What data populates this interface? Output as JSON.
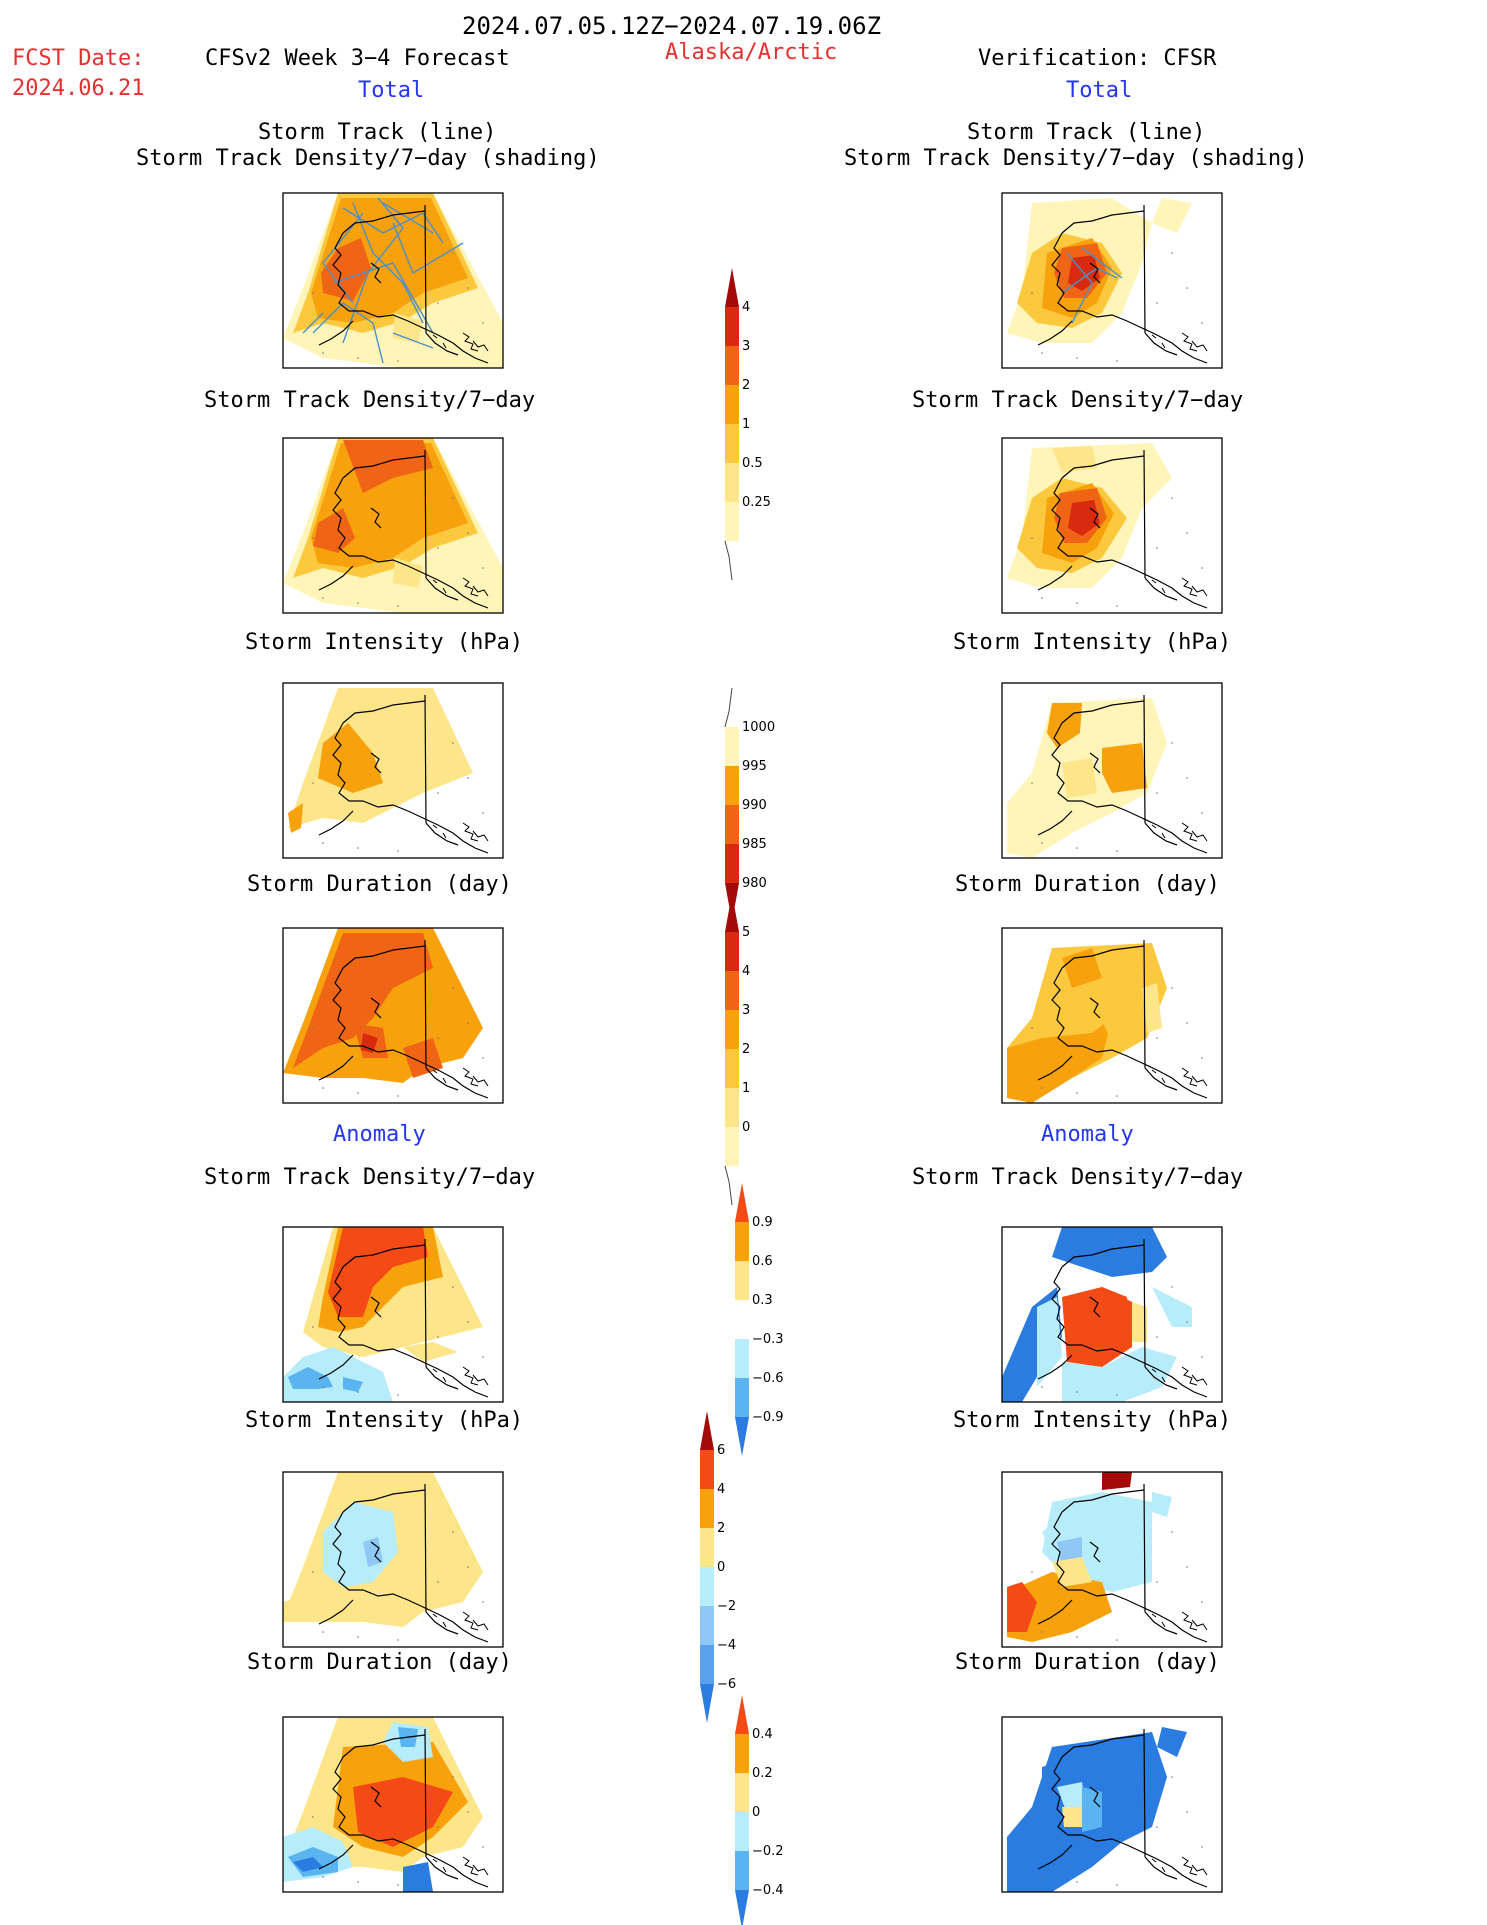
{
  "header": {
    "period": "2024.07.05.12Z−2024.07.19.06Z",
    "fcst_label": "FCST Date:",
    "fcst_date": "2024.06.21",
    "forecast_title": "CFSv2 Week 3−4 Forecast",
    "region": "Alaska/Arctic",
    "verification": "Verification: CFSR"
  },
  "sections": {
    "total": "Total",
    "anomaly": "Anomaly"
  },
  "panel_titles": {
    "track_line": "Storm Track (line)",
    "track_shading": "Storm Track Density/7−day (shading)",
    "density": "Storm Track Density/7−day",
    "intensity": "Storm Intensity (hPa)",
    "duration": "Storm Duration (day)"
  },
  "colorbars": {
    "density": {
      "labels": [
        "4",
        "3",
        "2",
        "1",
        "0.5",
        "0.25"
      ],
      "colors": [
        "#a50a0a",
        "#d92a10",
        "#f06515",
        "#f7a20d",
        "#fbc83e",
        "#fde68a",
        "#fff5b8"
      ]
    },
    "intensity": {
      "labels": [
        "1000",
        "995",
        "990",
        "985",
        "980"
      ],
      "colors": [
        "#fff5b8",
        "#f7a20d",
        "#f06515",
        "#d92a10",
        "#a50a0a"
      ]
    },
    "duration": {
      "labels": [
        "5",
        "4",
        "3",
        "2",
        "1",
        "0"
      ],
      "colors": [
        "#a50a0a",
        "#d92a10",
        "#f06515",
        "#f7a20d",
        "#fbc83e",
        "#fde68a",
        "#fff5b8"
      ]
    },
    "density_anom": {
      "labels": [
        "0.9",
        "0.6",
        "0.3",
        "−0.3",
        "−0.6",
        "−0.9"
      ],
      "colors": [
        "#f44a16",
        "#f7a20d",
        "#fde68a",
        "#ffffff",
        "#b7ecfa",
        "#5ab4f0",
        "#2a7ce0"
      ]
    },
    "intensity_anom": {
      "labels": [
        "6",
        "4",
        "2",
        "0",
        "−2",
        "−4",
        "−6"
      ],
      "colors": [
        "#a50a0a",
        "#f44a16",
        "#f7a20d",
        "#fde68a",
        "#b7ecfa",
        "#8fc8f5",
        "#5aa2ee",
        "#2a7ce0"
      ]
    },
    "duration_anom": {
      "labels": [
        "0.4",
        "0.2",
        "0",
        "−0.2",
        "−0.4"
      ],
      "colors": [
        "#f44a16",
        "#f7a20d",
        "#fde68a",
        "#b7ecfa",
        "#5ab4f0",
        "#2a7ce0"
      ]
    }
  }
}
